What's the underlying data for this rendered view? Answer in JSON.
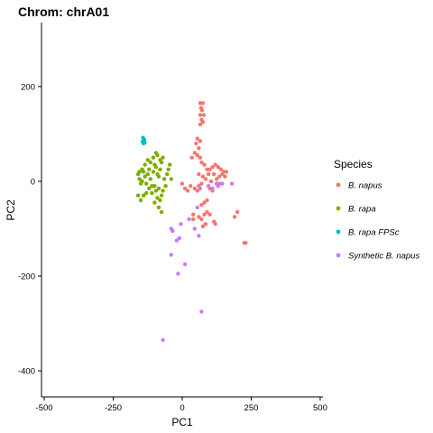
{
  "chart_data": {
    "type": "scatter",
    "title": "Chrom: chrA01",
    "xlabel": "PC1",
    "ylabel": "PC2",
    "xlim": [
      -510,
      510
    ],
    "ylim": [
      -455,
      335
    ],
    "xticks": [
      -500,
      -250,
      0,
      250,
      500
    ],
    "yticks": [
      -400,
      -200,
      0,
      200
    ],
    "grid": false,
    "legend": {
      "title": "Species",
      "placement": "right"
    },
    "series": [
      {
        "name": "B. napus",
        "color": "#F8766D",
        "points": [
          [
            65,
            165
          ],
          [
            75,
            165
          ],
          [
            68,
            155
          ],
          [
            72,
            150
          ],
          [
            65,
            140
          ],
          [
            78,
            140
          ],
          [
            70,
            130
          ],
          [
            75,
            125
          ],
          [
            65,
            120
          ],
          [
            55,
            90
          ],
          [
            65,
            85
          ],
          [
            50,
            80
          ],
          [
            60,
            70
          ],
          [
            45,
            60
          ],
          [
            55,
            55
          ],
          [
            35,
            50
          ],
          [
            65,
            50
          ],
          [
            70,
            40
          ],
          [
            80,
            35
          ],
          [
            90,
            25
          ],
          [
            100,
            25
          ],
          [
            110,
            30
          ],
          [
            120,
            35
          ],
          [
            130,
            30
          ],
          [
            140,
            25
          ],
          [
            150,
            20
          ],
          [
            160,
            20
          ],
          [
            95,
            15
          ],
          [
            115,
            15
          ],
          [
            125,
            5
          ],
          [
            135,
            10
          ],
          [
            145,
            15
          ],
          [
            155,
            10
          ],
          [
            60,
            15
          ],
          [
            75,
            10
          ],
          [
            85,
            5
          ],
          [
            105,
            0
          ],
          [
            70,
            -5
          ],
          [
            60,
            -10
          ],
          [
            100,
            -15
          ],
          [
            110,
            -20
          ],
          [
            135,
            -5
          ],
          [
            0,
            -5
          ],
          [
            10,
            -15
          ],
          [
            20,
            -20
          ],
          [
            30,
            -10
          ],
          [
            45,
            -15
          ],
          [
            55,
            -20
          ],
          [
            70,
            -50
          ],
          [
            80,
            -45
          ],
          [
            90,
            -40
          ],
          [
            40,
            -70
          ],
          [
            60,
            -75
          ],
          [
            70,
            -80
          ],
          [
            80,
            -70
          ],
          [
            90,
            -65
          ],
          [
            100,
            -70
          ],
          [
            85,
            -90
          ],
          [
            75,
            -95
          ],
          [
            115,
            -85
          ],
          [
            120,
            -90
          ],
          [
            200,
            -65
          ],
          [
            190,
            -75
          ],
          [
            225,
            -130
          ],
          [
            230,
            -130
          ],
          [
            40,
            -80
          ]
        ]
      },
      {
        "name": "B. rapa",
        "color": "#7CAE00",
        "points": [
          [
            -160,
            15
          ],
          [
            -155,
            5
          ],
          [
            -150,
            -5
          ],
          [
            -145,
            0
          ],
          [
            -140,
            20
          ],
          [
            -135,
            10
          ],
          [
            -130,
            -5
          ],
          [
            -125,
            15
          ],
          [
            -120,
            25
          ],
          [
            -115,
            5
          ],
          [
            -110,
            -10
          ],
          [
            -105,
            20
          ],
          [
            -100,
            35
          ],
          [
            -95,
            30
          ],
          [
            -90,
            15
          ],
          [
            -85,
            10
          ],
          [
            -80,
            25
          ],
          [
            -75,
            40
          ],
          [
            -85,
            -15
          ],
          [
            -95,
            -20
          ],
          [
            -100,
            -10
          ],
          [
            -110,
            -25
          ],
          [
            -120,
            -15
          ],
          [
            -130,
            -25
          ],
          [
            -140,
            -30
          ],
          [
            -150,
            -40
          ],
          [
            -160,
            -30
          ],
          [
            -115,
            40
          ],
          [
            -105,
            50
          ],
          [
            -90,
            55
          ],
          [
            -80,
            45
          ],
          [
            -70,
            50
          ],
          [
            -125,
            45
          ],
          [
            -135,
            35
          ],
          [
            -145,
            25
          ],
          [
            -155,
            20
          ],
          [
            -90,
            -35
          ],
          [
            -80,
            -40
          ],
          [
            -75,
            -30
          ],
          [
            -70,
            -20
          ],
          [
            -60,
            -10
          ],
          [
            -65,
            5
          ],
          [
            -55,
            15
          ],
          [
            -50,
            25
          ],
          [
            -45,
            35
          ],
          [
            -40,
            5
          ],
          [
            -95,
            60
          ],
          [
            -100,
            -45
          ],
          [
            -85,
            -55
          ],
          [
            -75,
            -65
          ]
        ]
      },
      {
        "name": "B. rapa FPSc",
        "color": "#00BFC4",
        "points": [
          [
            -142,
            92
          ],
          [
            -138,
            88
          ],
          [
            -144,
            84
          ],
          [
            -140,
            80
          ],
          [
            -136,
            82
          ]
        ]
      },
      {
        "name": "Synthetic B. napus",
        "color": "#C77CFF",
        "points": [
          [
            180,
            -5
          ],
          [
            145,
            -5
          ],
          [
            130,
            -10
          ],
          [
            125,
            -5
          ],
          [
            110,
            -15
          ],
          [
            95,
            -10
          ],
          [
            65,
            -15
          ],
          [
            -5,
            -90
          ],
          [
            25,
            -80
          ],
          [
            55,
            -55
          ],
          [
            -35,
            -105
          ],
          [
            -40,
            -100
          ],
          [
            -10,
            -120
          ],
          [
            -20,
            -125
          ],
          [
            10,
            -175
          ],
          [
            -40,
            -155
          ],
          [
            -15,
            -195
          ],
          [
            70,
            -275
          ],
          [
            -70,
            -335
          ],
          [
            45,
            -100
          ],
          [
            60,
            -115
          ]
        ]
      }
    ]
  }
}
